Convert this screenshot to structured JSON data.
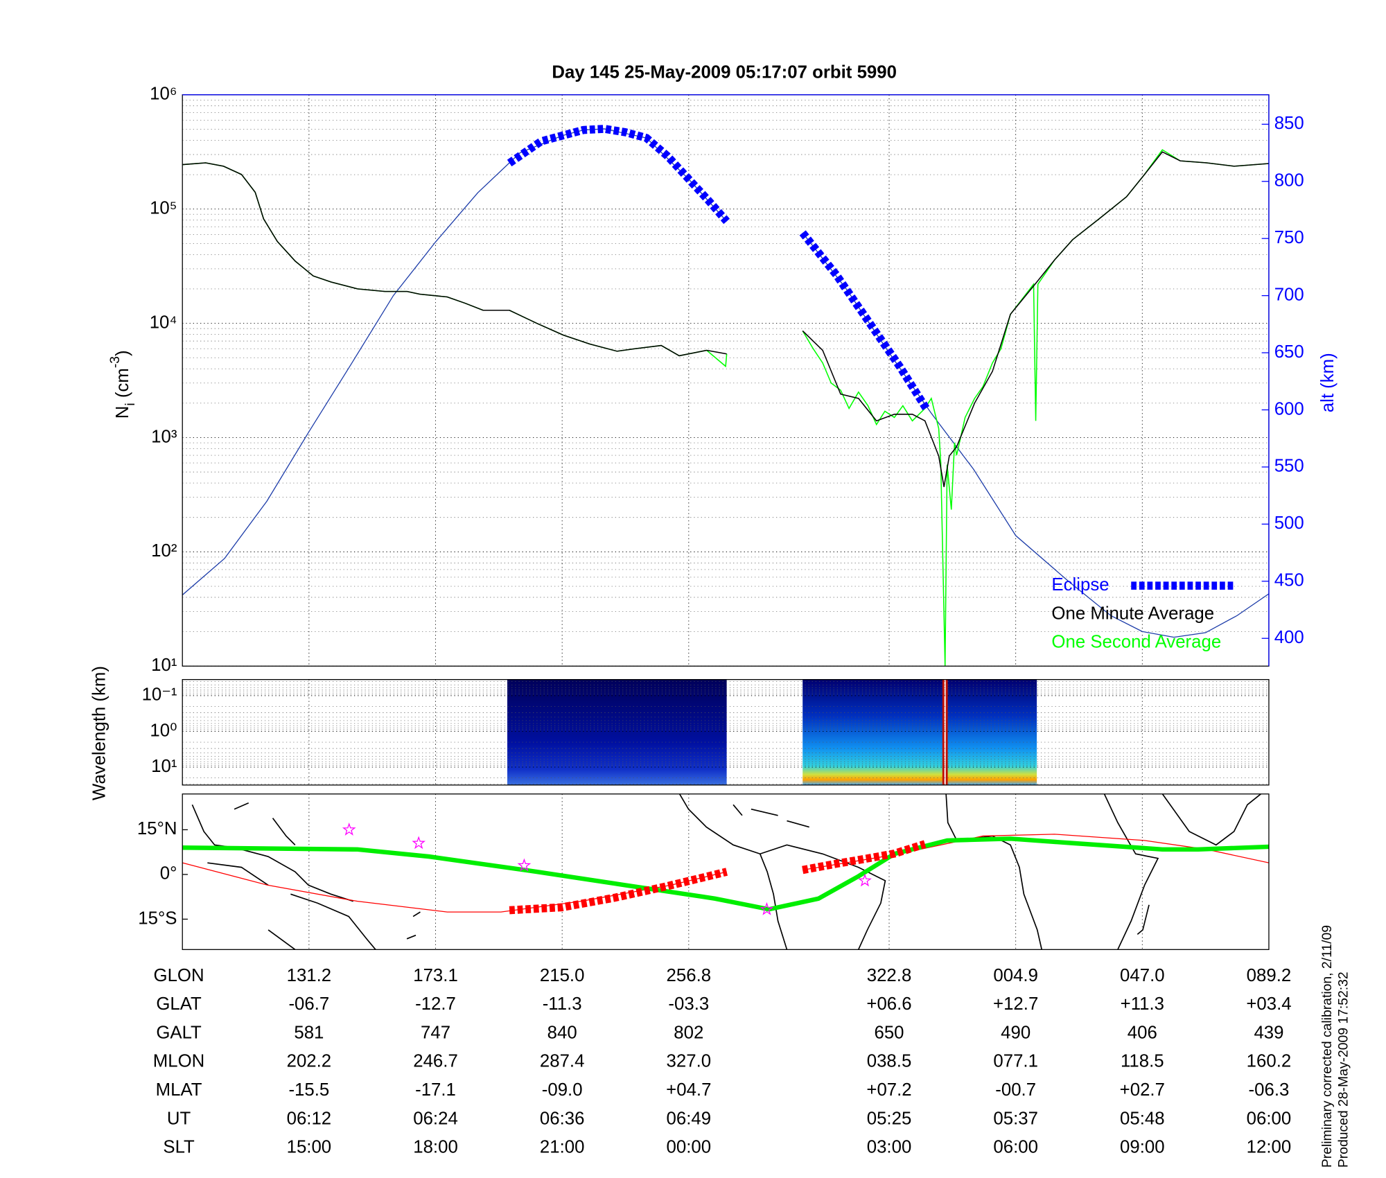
{
  "chart_data": [
    {
      "type": "line",
      "title": "Day 145  25-May-2009 05:17:07   orbit 5990",
      "ylabel": [
        "N",
        "i",
        " (cm",
        "-3",
        ")"
      ],
      "y2label": "alt (km)",
      "xlim": [
        0,
        103
      ],
      "xticks": [
        12,
        24,
        36,
        48,
        67,
        79,
        91,
        103
      ],
      "ylog": true,
      "ylim": [
        10,
        1000000
      ],
      "yticks": [
        {
          "value": 10,
          "label": "10¹"
        },
        {
          "value": 100,
          "label": "10²"
        },
        {
          "value": 1000,
          "label": "10³"
        },
        {
          "value": 10000,
          "label": "10⁴"
        },
        {
          "value": 100000,
          "label": "10⁵"
        },
        {
          "value": 1000000,
          "label": "10⁶"
        }
      ],
      "yminorticks": [
        20,
        30,
        40,
        50,
        60,
        70,
        80,
        90,
        200,
        300,
        400,
        500,
        600,
        700,
        800,
        900,
        2000,
        3000,
        4000,
        5000,
        6000,
        7000,
        8000,
        9000,
        20000,
        30000,
        40000,
        50000,
        60000,
        70000,
        80000,
        90000,
        200000,
        300000,
        400000,
        500000,
        600000,
        700000,
        800000,
        900000
      ],
      "y2lim": [
        375.7,
        875.8
      ],
      "y2ticks": [
        400,
        450,
        500,
        550,
        600,
        650,
        700,
        750,
        800,
        850
      ],
      "y2color": "#0000ff",
      "grid": true,
      "legend": "lower right",
      "series": [
        {
          "color": "#1a3aa8",
          "axis": "y2",
          "width": 1,
          "x": [
            0,
            4,
            8,
            12,
            16,
            20,
            24,
            28,
            32,
            36,
            38,
            40,
            44,
            48,
            51.6,
            55,
            58.8,
            63,
            67,
            71,
            75,
            79,
            84,
            88,
            91,
            94,
            97,
            100,
            103
          ],
          "values": [
            438,
            470,
            520,
            581,
            640,
            700,
            747,
            790,
            825,
            840,
            845,
            846,
            838,
            802,
            765,
            null,
            755,
            705,
            650,
            597,
            548,
            490,
            450,
            420,
            406,
            401,
            405,
            420,
            439
          ]
        },
        {
          "name": "Eclipse",
          "color": "#0000ff",
          "axis": "y2",
          "width": 9,
          "dash": true,
          "x": [
            31,
            34,
            36,
            38,
            40,
            42,
            44,
            46,
            48,
            50,
            51.6,
            55,
            58.8,
            62,
            65,
            68,
            70.6
          ],
          "values": [
            816,
            835,
            840,
            845,
            846,
            843,
            838,
            822,
            802,
            782,
            765,
            null,
            755,
            718,
            678,
            638,
            600
          ]
        },
        {
          "name": "One Minute Average",
          "color": "#000000",
          "width": 1.2,
          "x": [
            0,
            2.2,
            3.9,
            5.6,
            6.9,
            7.7,
            9.0,
            10.7,
            12.4,
            14.1,
            16.6,
            19.2,
            21.3,
            22.5,
            25.1,
            26.8,
            28.5,
            31.0,
            33.6,
            36.1,
            38.6,
            41.2,
            42.9,
            45.4,
            47.1,
            49.7,
            51.6,
            55,
            58.8,
            60.7,
            62.4,
            64.1,
            65.8,
            67.5,
            69.2,
            70.4,
            71.7,
            72.2,
            72.7,
            73.4,
            75.1,
            76.8,
            78.5,
            81.0,
            82.7,
            84.4,
            86.9,
            89.5,
            91.2,
            92.9,
            94.6,
            97.1,
            99.7,
            103
          ],
          "values": [
            245000,
            254000,
            237000,
            201000,
            140000,
            82000,
            52000,
            35000,
            26000,
            23000,
            20000,
            19000,
            19000,
            18000,
            17000,
            15000,
            13000,
            13000,
            10000,
            7900,
            6600,
            5700,
            6000,
            6400,
            5200,
            5800,
            5400,
            null,
            8600,
            5800,
            2400,
            2200,
            1400,
            1600,
            1600,
            1400,
            690,
            370,
            690,
            830,
            2000,
            3800,
            12000,
            23000,
            36000,
            54000,
            82000,
            128000,
            200000,
            316000,
            264000,
            254000,
            237000,
            250000
          ]
        },
        {
          "name": "One Second Average",
          "color": "#00ff00",
          "width": 1.2,
          "x": [
            0,
            2.2,
            3.9,
            5.6,
            6.9,
            7.7,
            9.0,
            10.7,
            12.4,
            14.1,
            16.6,
            19.2,
            21.3,
            22.5,
            25.1,
            26.8,
            28.5,
            31.0,
            33.6,
            36.1,
            38.6,
            41.2,
            42.9,
            45.4,
            47.1,
            49.7,
            51.5,
            51.6,
            55,
            58.8,
            59.8,
            60.7,
            61.5,
            62.4,
            63.2,
            64.1,
            65.0,
            65.8,
            66.6,
            67.5,
            68.3,
            69.2,
            70.4,
            71.0,
            71.7,
            71.9,
            72.3,
            72.5,
            72.9,
            73.2,
            73.4,
            74.2,
            75.1,
            75.9,
            76.8,
            77.6,
            78.5,
            80.7,
            80.9,
            81.1,
            82.7,
            84.4,
            86.9,
            89.5,
            91.2,
            92.9,
            94.6,
            97.1,
            99.7,
            103
          ],
          "values": [
            245000,
            254000,
            237000,
            201000,
            140000,
            82000,
            52000,
            35000,
            26000,
            23000,
            20000,
            19000,
            19000,
            18000,
            17000,
            15000,
            13000,
            13000,
            10000,
            7900,
            6600,
            5700,
            6000,
            6400,
            5200,
            5800,
            4200,
            5400,
            null,
            8600,
            6000,
            4500,
            3000,
            2600,
            1800,
            2500,
            1900,
            1300,
            1700,
            1500,
            1900,
            1400,
            1800,
            2200,
            1200,
            600,
            10,
            580,
            234,
            900,
            700,
            1500,
            2200,
            2800,
            4500,
            6000,
            12000,
            22000,
            1400,
            22000,
            36000,
            54000,
            82000,
            128000,
            200000,
            330000,
            264000,
            254000,
            237000,
            250000
          ]
        }
      ]
    },
    {
      "type": "spectrogram",
      "ylabel": "Wavelength (km)",
      "ylog": true,
      "ylim": [
        31.6,
        0.0355
      ],
      "yticks": [
        {
          "value": 0.1,
          "label": "10⁻¹"
        },
        {
          "value": 1,
          "label": "10⁰"
        },
        {
          "value": 10,
          "label": "10¹"
        }
      ],
      "yminorticks": [
        0.04,
        0.05,
        0.06,
        0.07,
        0.08,
        0.09,
        0.2,
        0.3,
        0.4,
        0.5,
        0.6,
        0.7,
        0.8,
        0.9,
        2,
        3,
        4,
        5,
        6,
        7,
        8,
        9,
        20,
        30
      ],
      "blocks": [
        [
          30.8,
          51.6
        ],
        [
          58.8,
          81.0
        ]
      ],
      "spike": 72.3
    },
    {
      "type": "map",
      "ylim": [
        -25.2,
        27
      ],
      "yticks": [
        {
          "value": 15,
          "label": "15°N"
        },
        {
          "value": 0,
          "label": "0°"
        },
        {
          "value": -15,
          "label": "15°S"
        }
      ],
      "series": [
        {
          "color": "#ff0000",
          "width": 1,
          "x": [
            0,
            8.1,
            16.6,
            25.1,
            30.2,
            37.8,
            46.3,
            51.6,
            55,
            58.8,
            67.5,
            75.9,
            82.7,
            91.2,
            97.1,
            103
          ],
          "values": [
            3.9,
            -3.6,
            -9.0,
            -12.6,
            -12.6,
            -9.0,
            -3.6,
            0.9,
            null,
            1.5,
            6.6,
            12.9,
            13.5,
            11.4,
            8.4,
            3.9
          ]
        },
        {
          "color": "#00ee00",
          "width": 5,
          "x": [
            0,
            16.6,
            23.4,
            33.6,
            42.0,
            50.5,
            55.6,
            60.3,
            64.1,
            67.5,
            72.5,
            78.5,
            84.4,
            92.9,
            96.3,
            103
          ],
          "values": [
            9.0,
            8.4,
            6.0,
            0.9,
            -3.6,
            -8.1,
            -11.7,
            -8.1,
            -0.6,
            6.9,
            11.4,
            12.0,
            10.5,
            8.4,
            8.4,
            9.3
          ]
        },
        {
          "color": "#ff0000",
          "width": 9,
          "dash": true,
          "x": [
            31.0,
            36,
            41,
            46,
            51.6,
            55,
            58.8,
            62,
            65,
            67.5,
            70.4
          ],
          "values": [
            -12.0,
            -11.0,
            -7.8,
            -3.9,
            0.9,
            null,
            1.5,
            3.6,
            5.4,
            7.0,
            10.2
          ]
        }
      ],
      "stars": {
        "color": "#ff00ff",
        "x": [
          15.8,
          22.4,
          32.4,
          55.4,
          64.7
        ],
        "values": [
          15.0,
          10.5,
          3.0,
          -11.7,
          -2.1
        ]
      }
    }
  ],
  "table": {
    "rows": [
      [
        "GLON",
        "131.2",
        "173.1",
        "215.0",
        "256.8",
        "322.8",
        "004.9",
        "047.0",
        "089.2"
      ],
      [
        "GLAT",
        "-06.7",
        "-12.7",
        "-11.3",
        "-03.3",
        "+06.6",
        "+12.7",
        "+11.3",
        "+03.4"
      ],
      [
        "GALT",
        "581",
        "747",
        "840",
        "802",
        "650",
        "490",
        "406",
        "439"
      ],
      [
        "MLON",
        "202.2",
        "246.7",
        "287.4",
        "327.0",
        "038.5",
        "077.1",
        "118.5",
        "160.2"
      ],
      [
        "MLAT",
        "-15.5",
        "-17.1",
        "-09.0",
        "+04.7",
        "+07.2",
        "-00.7",
        "+02.7",
        "-06.3"
      ],
      [
        "UT",
        "06:12",
        "06:24",
        "06:36",
        "06:49",
        "05:25",
        "05:37",
        "05:48",
        "06:00"
      ],
      [
        "SLT",
        "15:00",
        "18:00",
        "21:00",
        "00:00",
        "03:00",
        "06:00",
        "09:00",
        "12:00"
      ]
    ]
  },
  "footnotes": [
    "Preliminary corrected calibration, 2/11/09",
    "Produced 28-May-2009 17:52:32"
  ]
}
